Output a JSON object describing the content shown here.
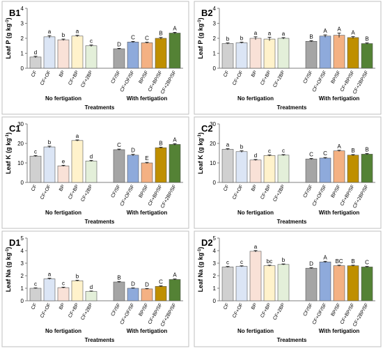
{
  "colors": {
    "CF": "#d0d0d0",
    "CF+OF": "#dbe5f5",
    "BP": "#f9e1d7",
    "CF+BP": "#fff2cb",
    "CF+2BP": "#e3efd9",
    "CF/SF": "#a5a5a5",
    "CF+OF/SF": "#8eaadb",
    "BP/SF": "#f4b183",
    "CF+BP/SF": "#bf8f00",
    "CF+2BP/SF": "#548235"
  },
  "groups": [
    "No fertigation",
    "With fertigation"
  ],
  "xlabel": "Treatments",
  "chart_data": [
    {
      "id": "B1",
      "type": "bar",
      "title": "B1",
      "ylabel": "Leaf P (g kg",
      "ylabel_sup": "-1",
      "ylabel_end": ")",
      "ylim": [
        0,
        4
      ],
      "yticks": [
        0,
        1,
        2,
        3,
        4
      ],
      "categories": [
        "CF",
        "CF+OF",
        "BP",
        "CF+BP",
        "CF+2BP",
        "CF/SF",
        "CF+OF/SF",
        "BP/SF",
        "CF+BP/SF",
        "CF+2BP/SF"
      ],
      "values": [
        0.75,
        2.1,
        1.9,
        2.15,
        1.5,
        1.3,
        1.75,
        1.7,
        2.0,
        2.35
      ],
      "errors": [
        0.05,
        0.08,
        0.05,
        0.05,
        0.05,
        0.03,
        0.04,
        0.04,
        0.06,
        0.05
      ],
      "letters": [
        "d",
        "a",
        "b",
        "a",
        "c",
        "D",
        "C",
        "C",
        "B",
        "A"
      ]
    },
    {
      "id": "B2",
      "type": "bar",
      "title": "B2",
      "ylabel": "Leaf P (g kg",
      "ylabel_sup": "-1",
      "ylabel_end": ")",
      "ylim": [
        0,
        4
      ],
      "yticks": [
        0,
        1,
        2,
        3,
        4
      ],
      "categories": [
        "CF",
        "CF+OF",
        "BP",
        "CF+BP",
        "CF+2BP",
        "CF/SF",
        "CF+OF/SF",
        "BP/SF",
        "CF+BP/SF",
        "CF+2BP/SF"
      ],
      "values": [
        1.65,
        1.7,
        2.0,
        1.95,
        2.0,
        1.8,
        2.15,
        2.2,
        2.05,
        1.65
      ],
      "errors": [
        0.04,
        0.04,
        0.1,
        0.12,
        0.05,
        0.04,
        0.08,
        0.15,
        0.06,
        0.04
      ],
      "letters": [
        "b",
        "b",
        "a",
        "a",
        "a",
        "B",
        "A",
        "A",
        "A",
        "B"
      ]
    },
    {
      "id": "C1",
      "type": "bar",
      "title": "C1",
      "ylabel": "Leaf K (g kg",
      "ylabel_sup": "-1",
      "ylabel_end": ")",
      "ylim": [
        0,
        30
      ],
      "yticks": [
        0,
        10,
        20,
        30
      ],
      "categories": [
        "CF",
        "CF+OF",
        "BP",
        "CF+BP",
        "CF+2BP",
        "CF/SF",
        "CF+OF/SF",
        "BP/SF",
        "CF+BP/SF",
        "CF+2BP/SF"
      ],
      "values": [
        13.5,
        18.2,
        8.5,
        21.5,
        11.0,
        16.8,
        14.0,
        10.0,
        17.8,
        19.5
      ],
      "errors": [
        0.3,
        0.4,
        0.3,
        0.3,
        0.3,
        0.3,
        0.4,
        0.3,
        0.3,
        0.4
      ],
      "letters": [
        "c",
        "b",
        "e",
        "a",
        "d",
        "C",
        "D",
        "E",
        "B",
        "A"
      ]
    },
    {
      "id": "C2",
      "type": "bar",
      "title": "C2",
      "ylabel": "Leaf K (g kg",
      "ylabel_sup": "-1",
      "ylabel_end": ")",
      "ylim": [
        0,
        30
      ],
      "yticks": [
        0,
        10,
        20,
        30
      ],
      "categories": [
        "CF",
        "CF+OF",
        "BP",
        "CF+BP",
        "CF+2BP",
        "CF/SF",
        "CF+OF/SF",
        "BP/SF",
        "CF+BP/SF",
        "CF+2BP/SF"
      ],
      "values": [
        17.0,
        15.8,
        11.5,
        13.8,
        14.0,
        12.0,
        12.5,
        16.2,
        14.0,
        14.5
      ],
      "errors": [
        0.3,
        0.4,
        0.3,
        0.3,
        0.3,
        0.3,
        0.3,
        0.3,
        0.3,
        0.3
      ],
      "letters": [
        "a",
        "b",
        "d",
        "c",
        "c",
        "C",
        "C",
        "A",
        "B",
        "B"
      ]
    },
    {
      "id": "D1",
      "type": "bar",
      "title": "D1",
      "ylabel": "Leaf Na (g kg",
      "ylabel_sup": "-1",
      "ylabel_end": ")",
      "ylim": [
        0,
        5
      ],
      "yticks": [
        0,
        1,
        2,
        3,
        4,
        5
      ],
      "categories": [
        "CF",
        "CF+OF",
        "BP",
        "CF+BP",
        "CF+2BP",
        "CF/SF",
        "CF+OF/SF",
        "BP/SF",
        "CF+BP/SF",
        "CF+2BP/SF"
      ],
      "values": [
        1.0,
        1.75,
        1.05,
        1.6,
        0.75,
        1.5,
        1.0,
        0.95,
        1.15,
        1.7
      ],
      "errors": [
        0.03,
        0.05,
        0.04,
        0.04,
        0.03,
        0.04,
        0.03,
        0.03,
        0.04,
        0.04
      ],
      "letters": [
        "c",
        "a",
        "c",
        "b",
        "d",
        "B",
        "D",
        "D",
        "C",
        "A"
      ]
    },
    {
      "id": "D2",
      "type": "bar",
      "title": "D2",
      "ylabel": "Leaf Na (g kg",
      "ylabel_sup": "-1",
      "ylabel_end": ")",
      "ylim": [
        0,
        5
      ],
      "yticks": [
        0,
        1,
        2,
        3,
        4,
        5
      ],
      "categories": [
        "CF",
        "CF+OF",
        "BP",
        "CF+BP",
        "CF+2BP",
        "CF/SF",
        "CF+OF/SF",
        "BP/SF",
        "CF+BP/SF",
        "CF+2BP/SF"
      ],
      "values": [
        2.7,
        2.75,
        3.95,
        2.8,
        2.9,
        2.6,
        3.1,
        2.8,
        2.8,
        2.7
      ],
      "errors": [
        0.04,
        0.04,
        0.06,
        0.04,
        0.04,
        0.04,
        0.05,
        0.04,
        0.04,
        0.04
      ],
      "letters": [
        "c",
        "c",
        "a",
        "bc",
        "b",
        "D",
        "A",
        "BC",
        "B",
        "C"
      ]
    }
  ]
}
